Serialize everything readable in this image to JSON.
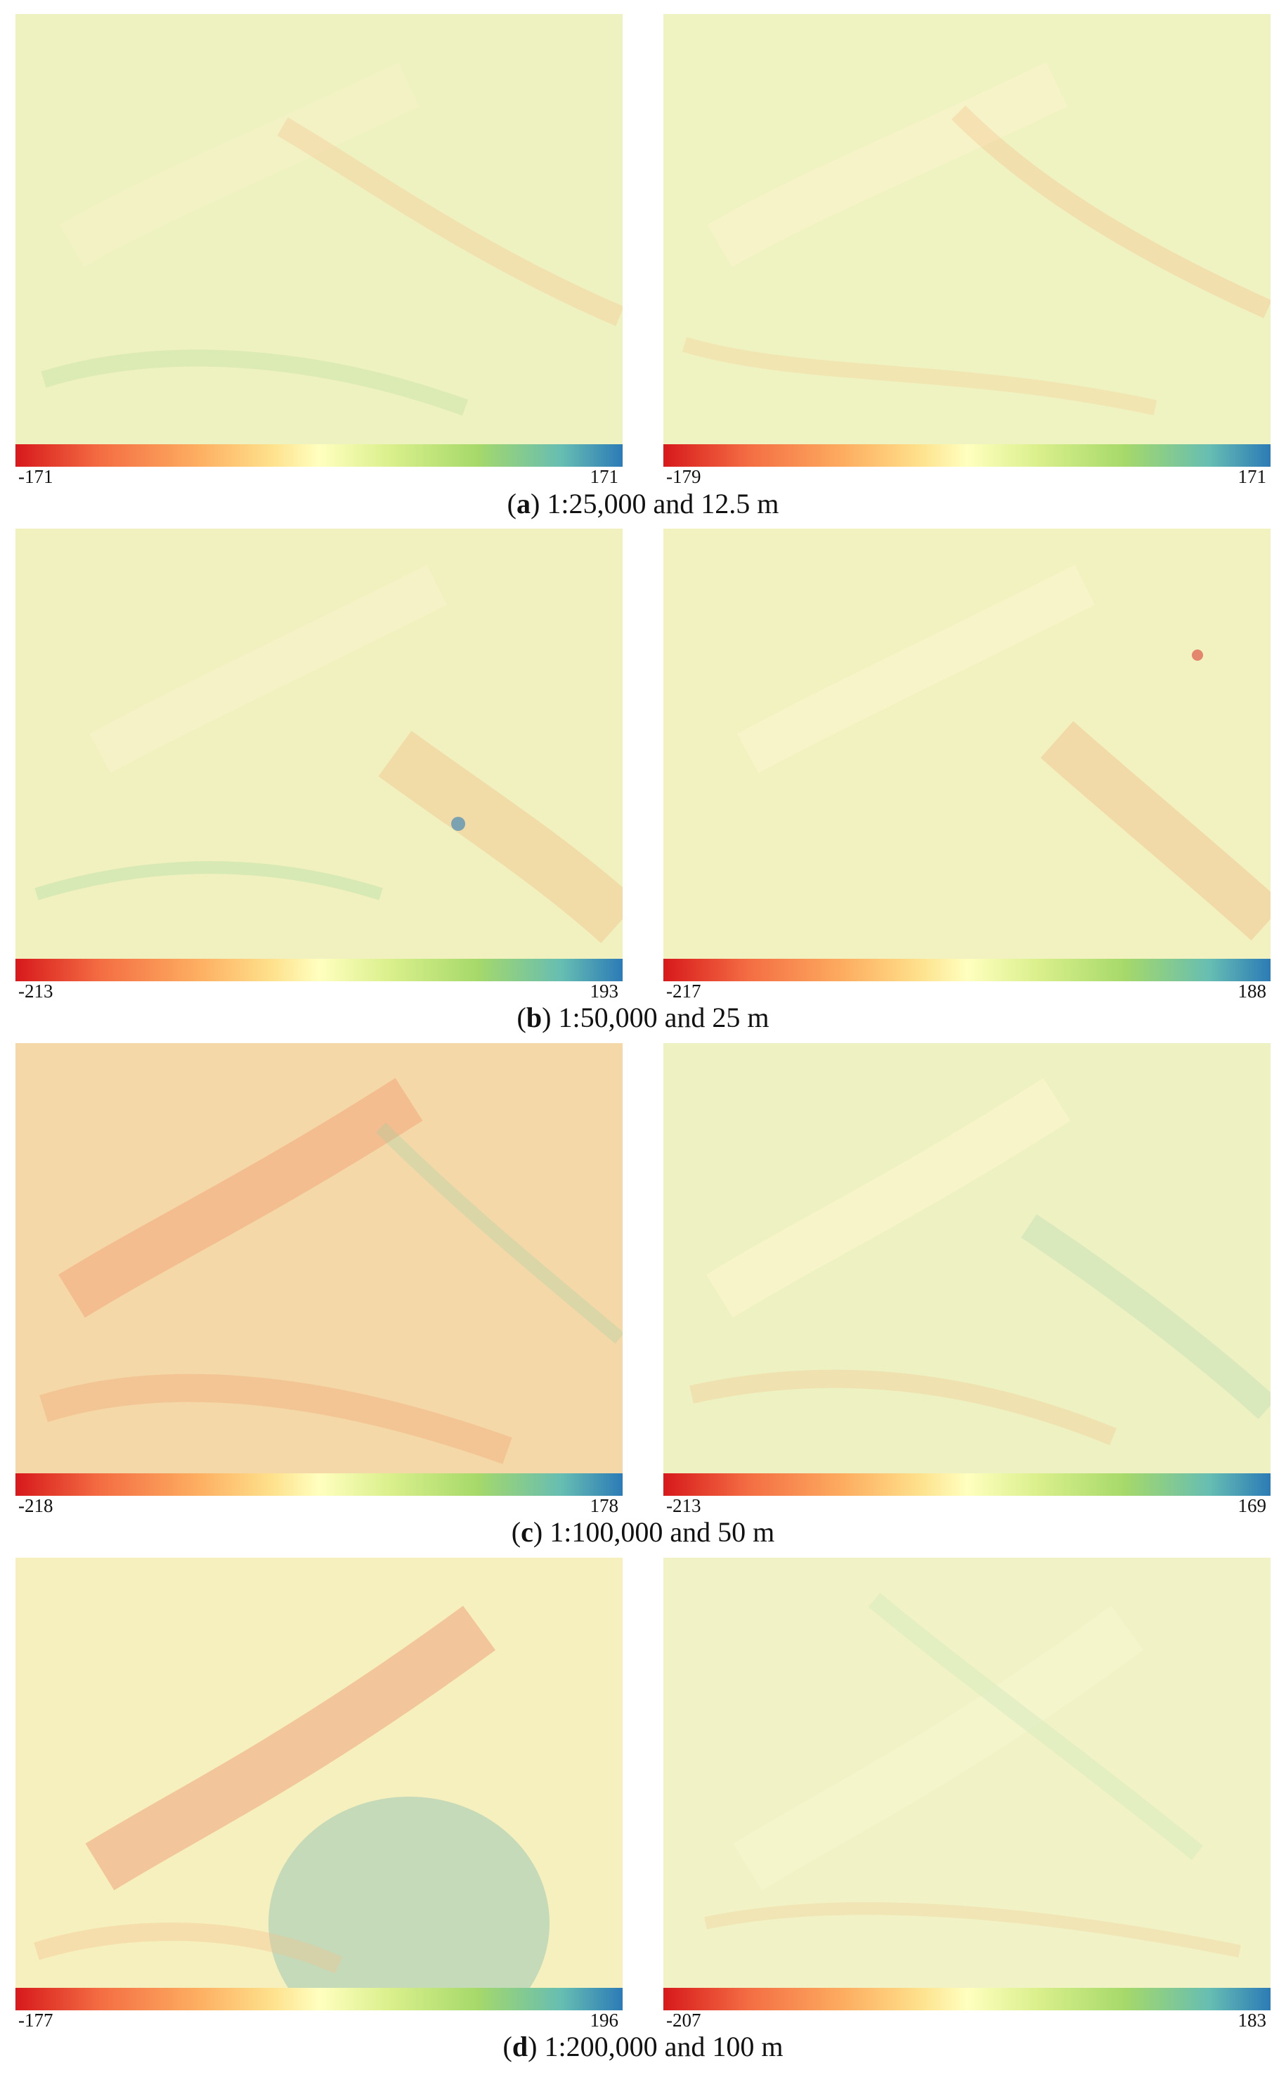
{
  "rows": [
    {
      "caption_letter": "a",
      "caption_text": "1:25,000 and 12.5 m",
      "left": {
        "min": "-171",
        "max": "171"
      },
      "right": {
        "min": "-179",
        "max": "171"
      }
    },
    {
      "caption_letter": "b",
      "caption_text": "1:50,000 and 25 m",
      "left": {
        "min": "-213",
        "max": "193"
      },
      "right": {
        "min": "-217",
        "max": "188"
      }
    },
    {
      "caption_letter": "c",
      "caption_text": "1:100,000 and 50 m",
      "left": {
        "min": "-218",
        "max": "178"
      },
      "right": {
        "min": "-213",
        "max": "169"
      }
    },
    {
      "caption_letter": "d",
      "caption_text": "1:200,000 and 100 m",
      "left": {
        "min": "-177",
        "max": "196"
      },
      "right": {
        "min": "-207",
        "max": "183"
      }
    }
  ],
  "colormap": [
    "#d7191c",
    "#fdae61",
    "#ffffbf",
    "#a6d96a",
    "#2c7bb6"
  ]
}
